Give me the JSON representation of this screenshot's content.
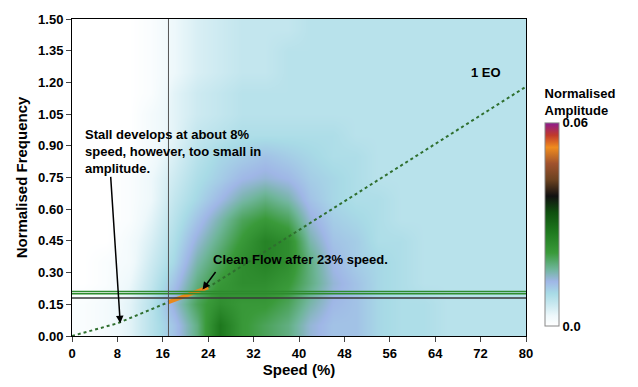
{
  "chart_data": {
    "type": "heatmap",
    "x_label": "Speed (%)",
    "y_label": "Normalised Frequency",
    "xlim": [
      0,
      80
    ],
    "xticks": [
      0,
      8,
      16,
      24,
      32,
      40,
      48,
      56,
      64,
      72,
      80
    ],
    "ylim": [
      0,
      1.5
    ],
    "yticks": [
      {
        "value": 0,
        "label": "0.00"
      },
      {
        "value": 0.15,
        "label": "0.15"
      },
      {
        "value": 0.3,
        "label": "0.30"
      },
      {
        "value": 0.45,
        "label": "0.45"
      },
      {
        "value": 0.6,
        "label": "0.60"
      },
      {
        "value": 0.75,
        "label": "0.75"
      },
      {
        "value": 0.9,
        "label": "0.90"
      },
      {
        "value": 1.05,
        "label": "1.05"
      },
      {
        "value": 1.2,
        "label": "1.20"
      },
      {
        "value": 1.35,
        "label": "1.35"
      },
      {
        "value": 1.5,
        "label": "1.50"
      }
    ],
    "grid": false,
    "x": [
      2,
      6,
      10,
      14,
      18,
      22,
      26,
      30,
      34,
      38,
      42,
      46,
      50,
      54,
      58,
      62,
      66,
      70,
      74,
      78
    ],
    "y": [
      0.05,
      0.15,
      0.25,
      0.35,
      0.45,
      0.55,
      0.65,
      0.75,
      0.85,
      0.95,
      1.05,
      1.15,
      1.25,
      1.35,
      1.45
    ],
    "z": [
      [
        0.001,
        0.002,
        0.004,
        0.008,
        0.012,
        0.018,
        0.028,
        0.022,
        0.02,
        0.018,
        0.014,
        0.012,
        0.012,
        0.01,
        0.009,
        0.009,
        0.008,
        0.008,
        0.008,
        0.008
      ],
      [
        0.001,
        0.002,
        0.004,
        0.008,
        0.014,
        0.02,
        0.024,
        0.022,
        0.022,
        0.02,
        0.016,
        0.013,
        0.012,
        0.01,
        0.009,
        0.009,
        0.008,
        0.008,
        0.008,
        0.008
      ],
      [
        0,
        0.001,
        0.003,
        0.007,
        0.012,
        0.018,
        0.022,
        0.024,
        0.024,
        0.022,
        0.018,
        0.014,
        0.012,
        0.01,
        0.009,
        0.008,
        0.008,
        0.008,
        0.008,
        0.008
      ],
      [
        0,
        0.001,
        0.002,
        0.006,
        0.01,
        0.016,
        0.02,
        0.024,
        0.026,
        0.024,
        0.018,
        0.013,
        0.011,
        0.01,
        0.009,
        0.008,
        0.008,
        0.008,
        0.008,
        0.008
      ],
      [
        0,
        0,
        0.002,
        0.005,
        0.009,
        0.014,
        0.018,
        0.022,
        0.026,
        0.024,
        0.016,
        0.012,
        0.011,
        0.009,
        0.009,
        0.008,
        0.008,
        0.008,
        0.008,
        0.008
      ],
      [
        0,
        0,
        0.001,
        0.004,
        0.008,
        0.012,
        0.016,
        0.02,
        0.022,
        0.02,
        0.014,
        0.011,
        0.01,
        0.009,
        0.008,
        0.008,
        0.008,
        0.008,
        0.008,
        0.008
      ],
      [
        0,
        0,
        0.001,
        0.003,
        0.007,
        0.01,
        0.013,
        0.016,
        0.018,
        0.016,
        0.012,
        0.01,
        0.009,
        0.009,
        0.008,
        0.008,
        0.008,
        0.008,
        0.008,
        0.008
      ],
      [
        0,
        0,
        0.001,
        0.003,
        0.006,
        0.009,
        0.011,
        0.013,
        0.014,
        0.013,
        0.011,
        0.01,
        0.009,
        0.008,
        0.008,
        0.008,
        0.008,
        0.008,
        0.008,
        0.008
      ],
      [
        0,
        0,
        0,
        0.002,
        0.005,
        0.008,
        0.01,
        0.011,
        0.012,
        0.011,
        0.01,
        0.009,
        0.009,
        0.008,
        0.008,
        0.008,
        0.008,
        0.008,
        0.008,
        0.008
      ],
      [
        0,
        0,
        0,
        0.002,
        0.004,
        0.007,
        0.008,
        0.009,
        0.009,
        0.009,
        0.009,
        0.009,
        0.008,
        0.008,
        0.008,
        0.008,
        0.008,
        0.008,
        0.008,
        0.008
      ],
      [
        0,
        0,
        0,
        0.002,
        0.004,
        0.006,
        0.007,
        0.008,
        0.008,
        0.008,
        0.008,
        0.008,
        0.008,
        0.008,
        0.008,
        0.008,
        0.008,
        0.008,
        0.008,
        0.008
      ],
      [
        0,
        0,
        0,
        0.001,
        0.004,
        0.006,
        0.007,
        0.008,
        0.008,
        0.008,
        0.008,
        0.008,
        0.008,
        0.008,
        0.008,
        0.008,
        0.008,
        0.008,
        0.008,
        0.008
      ],
      [
        0,
        0,
        0,
        0.001,
        0.003,
        0.005,
        0.006,
        0.007,
        0.007,
        0.008,
        0.008,
        0.008,
        0.008,
        0.008,
        0.008,
        0.008,
        0.008,
        0.008,
        0.008,
        0.008
      ],
      [
        0,
        0,
        0,
        0.001,
        0.003,
        0.005,
        0.006,
        0.007,
        0.007,
        0.008,
        0.008,
        0.008,
        0.008,
        0.008,
        0.008,
        0.008,
        0.008,
        0.008,
        0.008,
        0.008
      ],
      [
        0,
        0,
        0,
        0.001,
        0.003,
        0.005,
        0.006,
        0.007,
        0.007,
        0.007,
        0.008,
        0.008,
        0.008,
        0.008,
        0.008,
        0.008,
        0.008,
        0.008,
        0.008,
        0.008
      ]
    ],
    "colorbar": {
      "title": "Normalised Amplitude",
      "range": [
        0,
        0.06
      ],
      "ticks": [
        {
          "value": 0,
          "label": "0.0"
        },
        0.06
      ]
    },
    "series": [
      {
        "type": "line",
        "x": [
          0,
          8,
          17,
          24,
          80
        ],
        "values": [
          0,
          0.06,
          0.16,
          0.23,
          1.18
        ],
        "color": "#2f6f2f",
        "line_style": "dotted"
      },
      {
        "type": "line",
        "x": [
          17,
          24
        ],
        "values": [
          0.16,
          0.23
        ],
        "color": "#e8891c",
        "line_style": "solid"
      }
    ],
    "reference_lines": [
      {
        "axis": "y",
        "value": 0.18,
        "color": "#3a3a3a"
      },
      {
        "axis": "y",
        "value": 0.2,
        "color": "#2e8b2e"
      },
      {
        "axis": "y",
        "value": 0.21,
        "color": "#2e8b2e"
      },
      {
        "axis": "x",
        "value": 17,
        "color": "#555555"
      }
    ],
    "annotations": [
      {
        "text": "Stall develops at about 8% speed, however, too small in amplitude.",
        "x": 8.5,
        "y": 0.06
      },
      {
        "text": "Clean Flow after 23% speed.",
        "x": 23,
        "y": 0.22
      },
      {
        "text": "1 EO",
        "x": 73,
        "y": 1.2
      }
    ]
  }
}
